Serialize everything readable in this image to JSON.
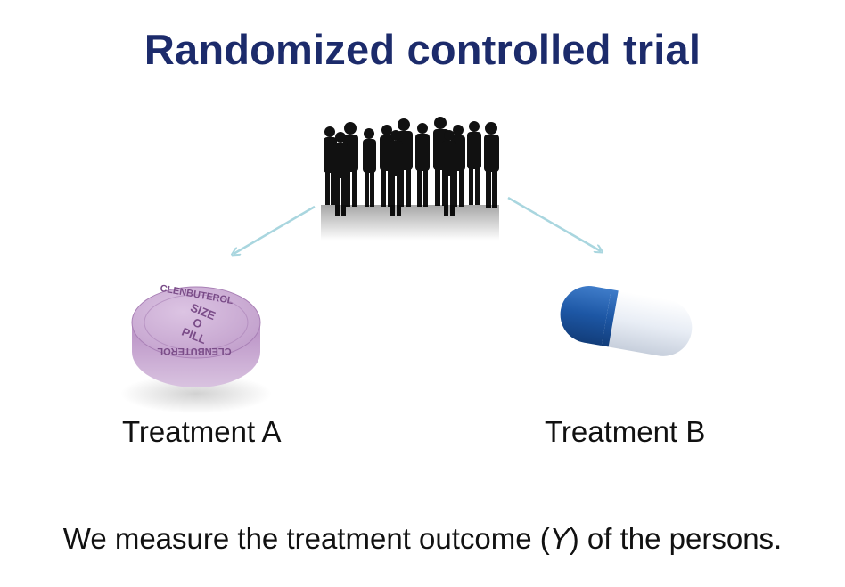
{
  "title": "Randomized controlled trial",
  "crowd_icon": "group-of-people-silhouette",
  "treatment_a": {
    "label": "Treatment A",
    "icon": "round-tablet-pill",
    "pill_text_ring": "CLENBUTEROL",
    "pill_text_center": [
      "SIZE",
      "O",
      "PILL"
    ]
  },
  "treatment_b": {
    "label": "Treatment B",
    "icon": "capsule-pill"
  },
  "caption": {
    "before": "We measure the treatment outcome (",
    "variable": "Y",
    "after": ") of the persons."
  },
  "colors": {
    "title": "#1c2b6b",
    "arrow": "#a9d6df",
    "pill": "#c9a9d2",
    "capsule_blue": "#1d57a5",
    "capsule_white": "#e8edf5"
  }
}
